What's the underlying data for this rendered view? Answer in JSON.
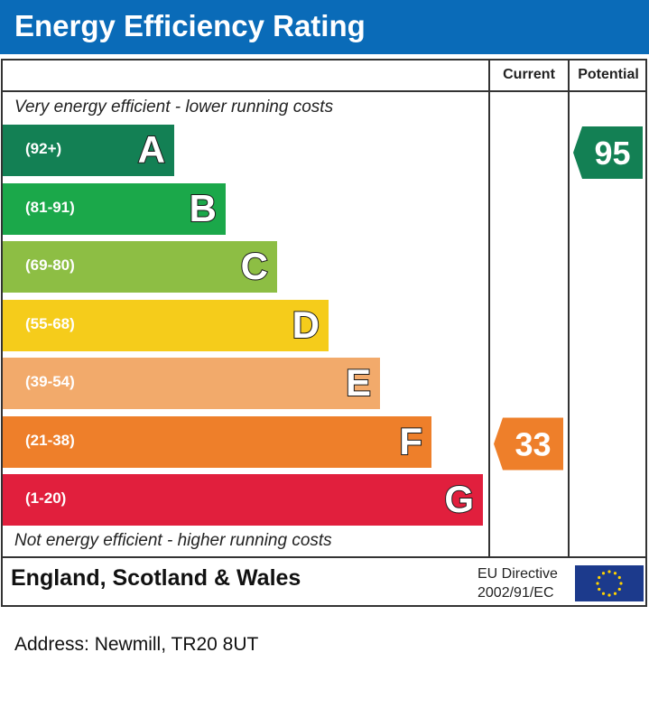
{
  "title": "Energy Efficiency Rating",
  "columns": {
    "current": "Current",
    "potential": "Potential"
  },
  "top_note": "Very energy efficient - lower running costs",
  "bottom_note": "Not energy efficient - higher running costs",
  "footer": {
    "region": "England, Scotland & Wales",
    "directive_line1": "EU Directive",
    "directive_line2": "2002/91/EC"
  },
  "address": "Address: Newmill, TR20 8UT",
  "chart_data": {
    "type": "bar",
    "categories": [
      "A",
      "B",
      "C",
      "D",
      "E",
      "F",
      "G"
    ],
    "ranges": [
      "(92+)",
      "(81-91)",
      "(69-80)",
      "(55-68)",
      "(39-54)",
      "(21-38)",
      "(1-20)"
    ],
    "colors": [
      "#138054",
      "#1ba84a",
      "#8dbe44",
      "#f5cc1b",
      "#f2aa6b",
      "#ee7f2a",
      "#e11f3d"
    ],
    "current": {
      "value": 33,
      "band": "F",
      "color": "#ee7f2a"
    },
    "potential": {
      "value": 95,
      "band": "A",
      "color": "#138054"
    }
  }
}
